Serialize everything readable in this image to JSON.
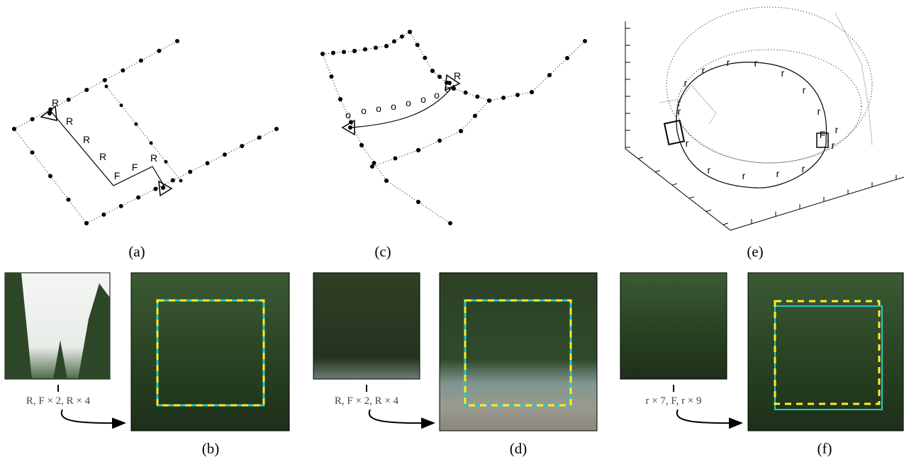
{
  "figure": {
    "top": [
      {
        "label": "(a)",
        "path_labels": [
          "R",
          "R",
          "R",
          "R",
          "F",
          "F",
          "R"
        ]
      },
      {
        "label": "(c)",
        "path_labels": [
          "o",
          "o",
          "o",
          "o",
          "o",
          "o",
          "o",
          "o",
          "R"
        ]
      },
      {
        "label": "(e)",
        "path_labels": [
          "r",
          "r",
          "r",
          "r",
          "r",
          "r",
          "r",
          "r",
          "F",
          "r",
          "r",
          "r",
          "r",
          "r",
          "r",
          "r",
          "r"
        ]
      }
    ],
    "bottom": [
      {
        "label": "(b)",
        "caption": "R, F × 2, R × 4"
      },
      {
        "label": "(d)",
        "caption": "R, F × 2, R × 4"
      },
      {
        "label": "(f)",
        "caption": "r × 7, F, r × 9"
      }
    ]
  }
}
